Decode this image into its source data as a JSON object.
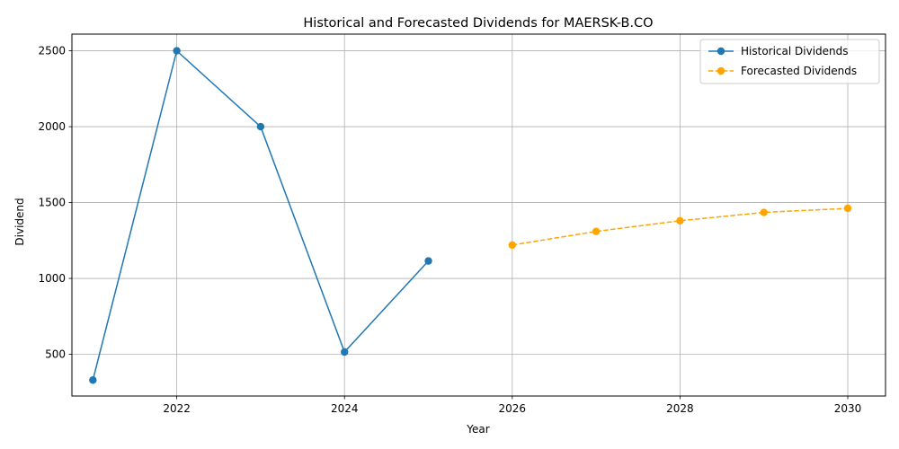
{
  "chart_data": {
    "type": "line",
    "title": "Historical and Forecasted Dividends for MAERSK-B.CO",
    "xlabel": "Year",
    "ylabel": "Dividend",
    "xlim": [
      2020.75,
      2030.45
    ],
    "ylim": [
      225,
      2610
    ],
    "xticks": [
      2022,
      2024,
      2026,
      2028,
      2030
    ],
    "yticks": [
      500,
      1000,
      1500,
      2000,
      2500
    ],
    "grid": true,
    "legend_position": "top-right",
    "series": [
      {
        "name": "Historical Dividends",
        "color": "#1f77b4",
        "style": "solid",
        "x": [
          2021,
          2022,
          2023,
          2024,
          2025
        ],
        "values": [
          330,
          2500,
          2000,
          515,
          1115
        ]
      },
      {
        "name": "Forecasted Dividends",
        "color": "#ffa500",
        "style": "dashed",
        "x": [
          2026,
          2027,
          2028,
          2029,
          2030
        ],
        "values": [
          1220,
          1310,
          1380,
          1435,
          1462
        ]
      }
    ]
  }
}
